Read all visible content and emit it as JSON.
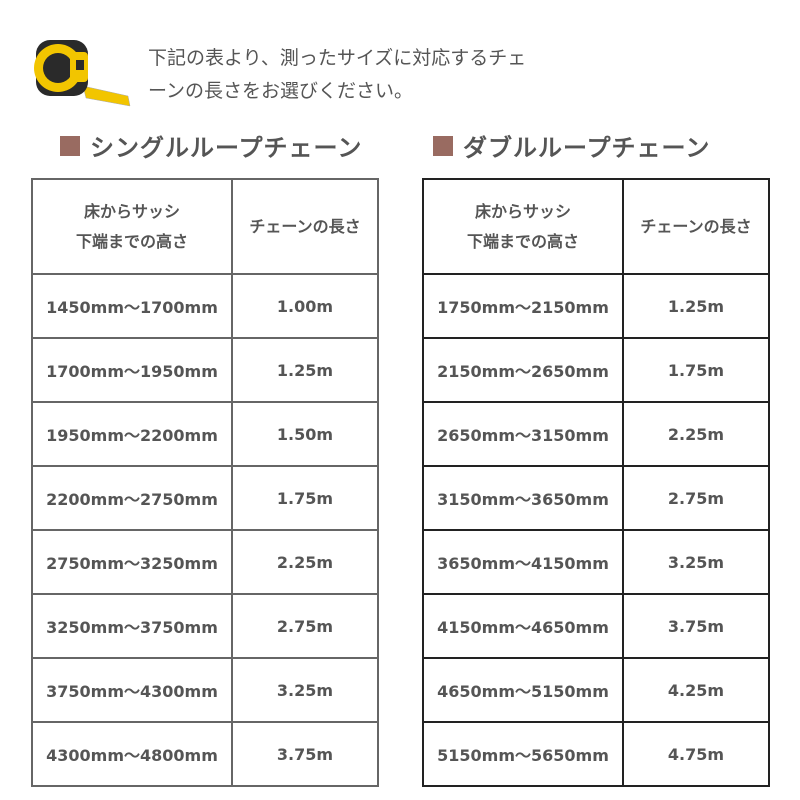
{
  "intro": {
    "line1": "下記の表より、測ったサイズに対応するチェ",
    "line2": "ーンの長さをお選びください。"
  },
  "icon": "tape-measure-icon",
  "accent": "#996b61",
  "single": {
    "title": "シングルループチェーン",
    "header": {
      "col1_line1": "床からサッシ",
      "col1_line2": "下端までの高さ",
      "col2": "チェーンの長さ"
    },
    "rows": [
      [
        "1450mm〜1700mm",
        "1.00m"
      ],
      [
        "1700mm〜1950mm",
        "1.25m"
      ],
      [
        "1950mm〜2200mm",
        "1.50m"
      ],
      [
        "2200mm〜2750mm",
        "1.75m"
      ],
      [
        "2750mm〜3250mm",
        "2.25m"
      ],
      [
        "3250mm〜3750mm",
        "2.75m"
      ],
      [
        "3750mm〜4300mm",
        "3.25m"
      ],
      [
        "4300mm〜4800mm",
        "3.75m"
      ]
    ]
  },
  "double": {
    "title": "ダブルループチェーン",
    "header": {
      "col1_line1": "床からサッシ",
      "col1_line2": "下端までの高さ",
      "col2": "チェーンの長さ"
    },
    "rows": [
      [
        "1750mm〜2150mm",
        "1.25m"
      ],
      [
        "2150mm〜2650mm",
        "1.75m"
      ],
      [
        "2650mm〜3150mm",
        "2.25m"
      ],
      [
        "3150mm〜3650mm",
        "2.75m"
      ],
      [
        "3650mm〜4150mm",
        "3.25m"
      ],
      [
        "4150mm〜4650mm",
        "3.75m"
      ],
      [
        "4650mm〜5150mm",
        "4.25m"
      ],
      [
        "5150mm〜5650mm",
        "4.75m"
      ]
    ]
  }
}
